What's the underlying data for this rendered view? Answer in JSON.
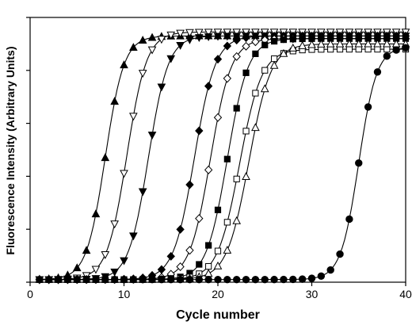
{
  "chart_data": {
    "type": "line",
    "xlabel": "Cycle number",
    "ylabel": "Fluorescence Intensity (Arbitrary Units)",
    "xlim": [
      0,
      40
    ],
    "ylim": [
      0,
      1.0
    ],
    "xticks": [
      0,
      10,
      20,
      30,
      40
    ],
    "xtick_labels": [
      "0",
      "10",
      "20",
      "30",
      "40"
    ],
    "yticks": [
      0,
      0.2,
      0.4,
      0.6,
      0.8,
      1.0
    ],
    "grid": false,
    "series": [
      {
        "marker": "triangle-up",
        "fill": "filled",
        "midpoint": 8.0,
        "slope": 1.0,
        "top": 0.93,
        "base": 0.01
      },
      {
        "marker": "triangle-down",
        "fill": "open",
        "midpoint": 10.3,
        "slope": 0.95,
        "top": 0.945,
        "base": 0.01
      },
      {
        "marker": "triangle-down",
        "fill": "filled",
        "midpoint": 12.6,
        "slope": 0.95,
        "top": 0.93,
        "base": 0.01
      },
      {
        "marker": "diamond",
        "fill": "filled",
        "midpoint": 17.5,
        "slope": 0.9,
        "top": 0.93,
        "base": 0.01
      },
      {
        "marker": "diamond",
        "fill": "open",
        "midpoint": 19.2,
        "slope": 0.9,
        "top": 0.92,
        "base": 0.01
      },
      {
        "marker": "square",
        "fill": "filled",
        "midpoint": 21.0,
        "slope": 0.9,
        "top": 0.92,
        "base": 0.01
      },
      {
        "marker": "square",
        "fill": "open",
        "midpoint": 22.3,
        "slope": 0.85,
        "top": 0.88,
        "base": 0.01
      },
      {
        "marker": "triangle-up",
        "fill": "open",
        "midpoint": 23.3,
        "slope": 0.85,
        "top": 0.9,
        "base": 0.01
      },
      {
        "marker": "circle",
        "fill": "filled",
        "midpoint": 35.0,
        "slope": 1.05,
        "top": 0.89,
        "base": 0.01
      }
    ]
  }
}
